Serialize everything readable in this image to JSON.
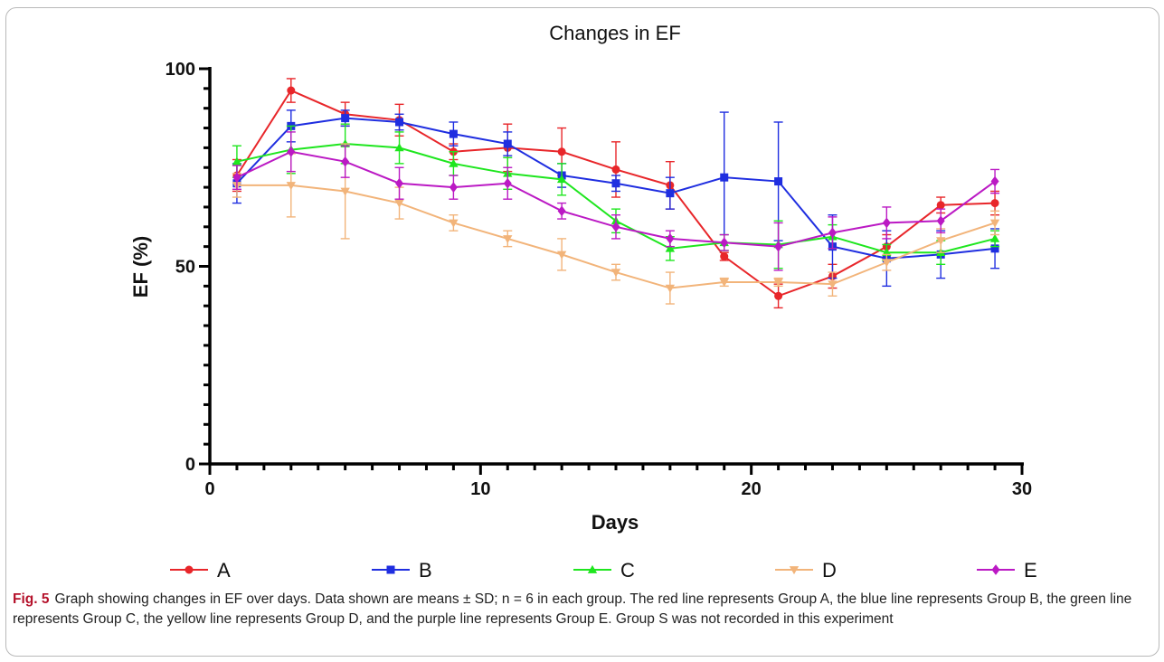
{
  "chart_data": {
    "type": "line",
    "title": "Changes in EF",
    "xlabel": "Days",
    "ylabel": "EF (%)",
    "xlim": [
      0,
      30
    ],
    "ylim": [
      0,
      100
    ],
    "xticks": [
      0,
      10,
      20,
      30
    ],
    "yticks": [
      0,
      50,
      100
    ],
    "x": [
      1,
      3,
      5,
      7,
      9,
      11,
      13,
      15,
      17,
      19,
      21,
      23,
      25,
      27,
      29
    ],
    "grid": false,
    "legend": "bottom",
    "series": [
      {
        "name": "A",
        "color": "#e8262a",
        "marker": "circle",
        "values": [
          73,
          94.5,
          88.5,
          87,
          79,
          80,
          79,
          74.5,
          70.5,
          52.5,
          42.5,
          47.5,
          55,
          65.5,
          66
        ],
        "sd": [
          4,
          3,
          3,
          4,
          2,
          6,
          6,
          7,
          6,
          1,
          3,
          3,
          3,
          2,
          3
        ]
      },
      {
        "name": "B",
        "color": "#1f2ee0",
        "marker": "square",
        "values": [
          71,
          85.5,
          87.5,
          86.5,
          83.5,
          81,
          73,
          71,
          68.5,
          72.5,
          71.5,
          55,
          52,
          53,
          54.5
        ],
        "sd": [
          5,
          4,
          2,
          2,
          3,
          3,
          3,
          2,
          4,
          16.5,
          15,
          8,
          7,
          6,
          5
        ]
      },
      {
        "name": "C",
        "color": "#1ee61e",
        "marker": "triangle-up",
        "values": [
          76.5,
          79.5,
          81,
          80,
          76,
          73.5,
          72,
          61.5,
          54.5,
          56,
          55.5,
          57.5,
          53.5,
          53.5,
          57
        ],
        "sd": [
          4,
          6,
          5,
          4,
          3,
          4,
          4,
          3,
          3,
          2,
          6,
          3,
          2,
          3,
          2
        ]
      },
      {
        "name": "D",
        "color": "#f2b47a",
        "marker": "triangle-down",
        "values": [
          70.5,
          70.5,
          69,
          66,
          61,
          57,
          53,
          48.5,
          44.5,
          46,
          46,
          45.5,
          51,
          56.5,
          61
        ],
        "sd": [
          3,
          8,
          12,
          4,
          2,
          2,
          4,
          2,
          4,
          1,
          1,
          3,
          2,
          3,
          3
        ]
      },
      {
        "name": "E",
        "color": "#bb19c4",
        "marker": "diamond",
        "values": [
          72.5,
          79,
          76.5,
          71,
          70,
          71,
          64,
          60,
          57,
          56,
          55,
          58.5,
          61,
          61.5,
          71.5
        ],
        "sd": [
          3,
          5,
          4,
          4,
          3,
          4,
          2,
          3,
          2,
          2,
          6,
          4,
          4,
          3,
          3
        ]
      }
    ]
  },
  "caption": {
    "label": "Fig. 5",
    "text": "Graph showing changes in EF over days. Data shown are means ± SD; n = 6 in each group. The red line represents Group A, the blue line represents Group B, the green line represents Group C, the yellow line represents Group D, and the purple line represents Group E. Group S was not recorded in this experiment"
  }
}
